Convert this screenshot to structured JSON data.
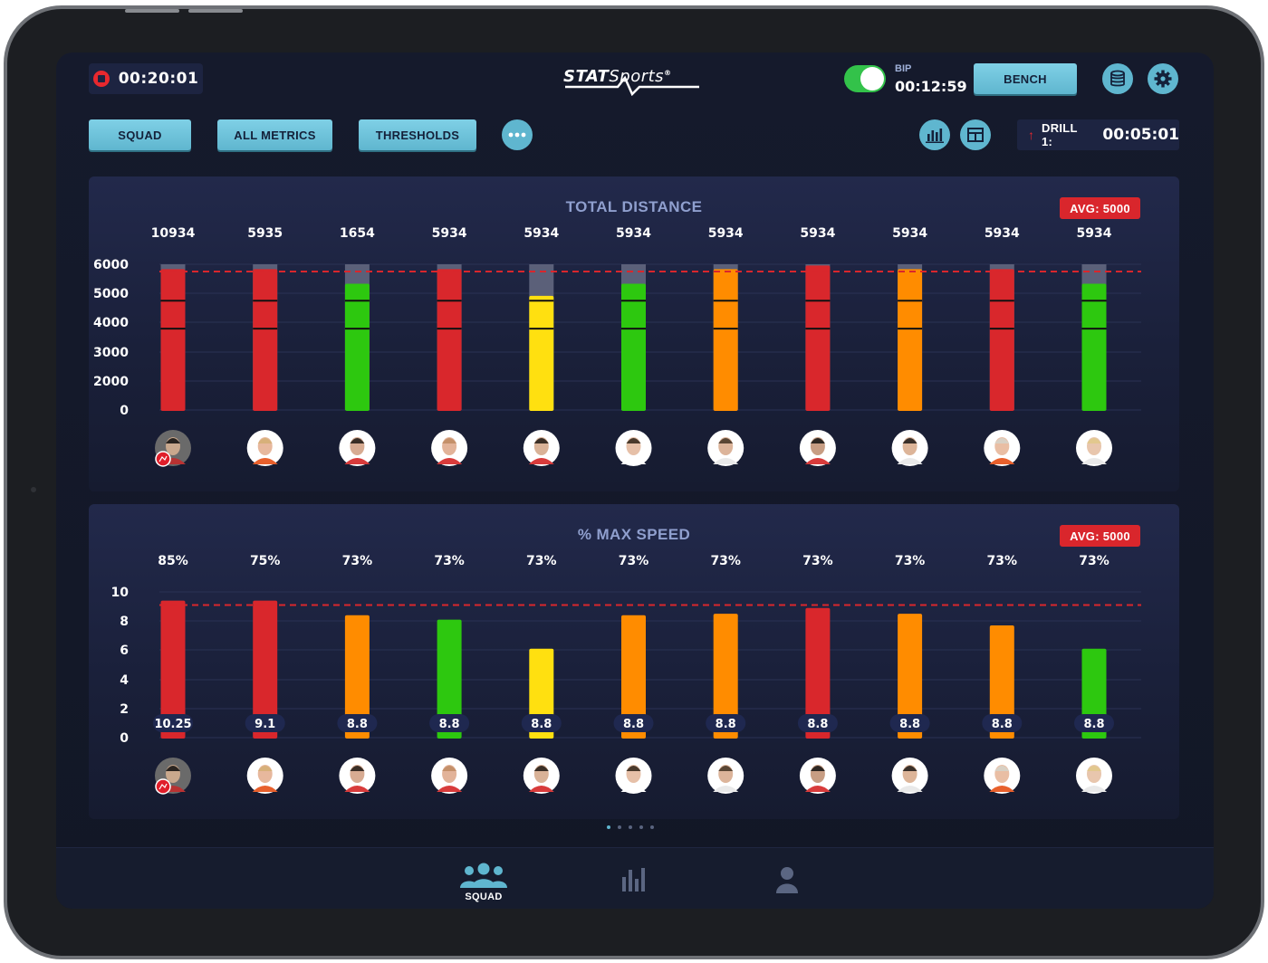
{
  "header": {
    "record_time": "00:20:01",
    "brand": {
      "bold": "STAT",
      "light": "Sports",
      "mark": "®"
    },
    "bip_label": "BIP",
    "bip_time": "00:12:59",
    "bench_label": "BENCH"
  },
  "toolbar": {
    "squad_label": "SQUAD",
    "metrics_label": "ALL METRICS",
    "thresholds_label": "THRESHOLDS",
    "more_icon": "more-icon",
    "drill_label": "DRILL 1:",
    "drill_time": "00:05:01"
  },
  "colors": {
    "red": "#d9272c",
    "orange": "#ff8c00",
    "green": "#2dc80f",
    "yellow": "#ffe010",
    "accent": "#5fb6cf"
  },
  "pager": {
    "pages": 5,
    "current": 1
  },
  "nav": {
    "squad_label": "SQUAD"
  },
  "chart_data": [
    {
      "type": "bar",
      "title": "TOTAL DISTANCE",
      "avg_label": "AVG: 5000",
      "yticks": [
        "6000",
        "5000",
        "4000",
        "3000",
        "2000",
        "0"
      ],
      "ylim": [
        0,
        6000
      ],
      "threshold": 5700,
      "series": [
        {
          "values": [
            5800,
            5800,
            5200,
            5800,
            4700,
            5200,
            5800,
            5950,
            5800,
            5800,
            5200
          ]
        }
      ],
      "top_labels": [
        "10934",
        "5935",
        "1654",
        "5934",
        "5934",
        "5934",
        "5934",
        "5934",
        "5934",
        "5934",
        "5934"
      ],
      "bar_colors": [
        "red",
        "red",
        "green",
        "red",
        "yellow",
        "green",
        "orange",
        "red",
        "orange",
        "red",
        "green"
      ],
      "ghost_top": 6000
    },
    {
      "type": "bar",
      "title": "% MAX SPEED",
      "avg_label": "AVG: 5000",
      "yticks": [
        "10",
        "8",
        "6",
        "4",
        "2",
        "0"
      ],
      "ylim": [
        0,
        10
      ],
      "threshold": 9.1,
      "series": [
        {
          "values": [
            9.4,
            9.4,
            8.4,
            8.1,
            6.1,
            8.4,
            8.5,
            8.9,
            8.5,
            7.7,
            6.1
          ]
        }
      ],
      "top_labels": [
        "85%",
        "75%",
        "73%",
        "73%",
        "73%",
        "73%",
        "73%",
        "73%",
        "73%",
        "73%",
        "73%"
      ],
      "value_badges": [
        "10.25",
        "9.1",
        "8.8",
        "8.8",
        "8.8",
        "8.8",
        "8.8",
        "8.8",
        "8.8",
        "8.8",
        "8.8"
      ],
      "bar_colors": [
        "red",
        "red",
        "orange",
        "green",
        "yellow",
        "orange",
        "orange",
        "red",
        "orange",
        "orange",
        "green"
      ]
    }
  ]
}
